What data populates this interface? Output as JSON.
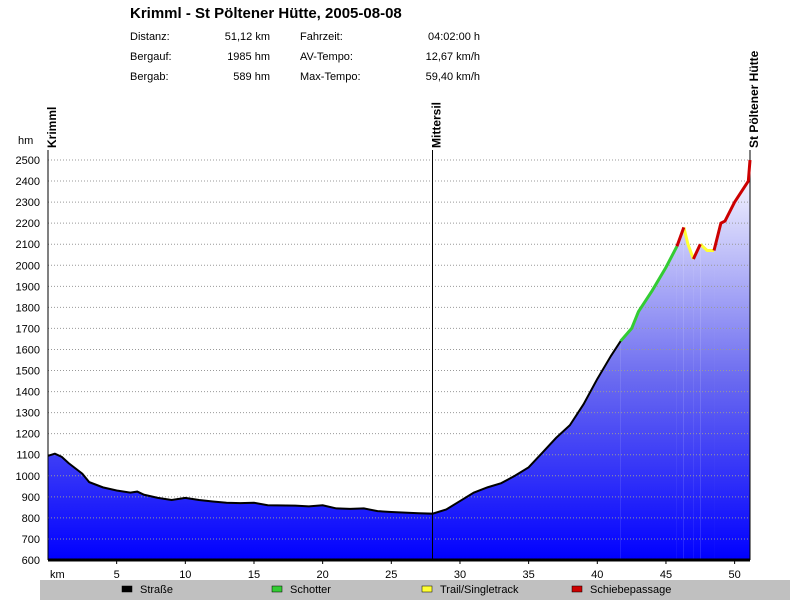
{
  "chart_data": {
    "type": "area",
    "title": "Krimml - St Pöltener Hütte, 2005-08-08",
    "stats": [
      {
        "label": "Distanz:",
        "value": "51,12 km"
      },
      {
        "label": "Bergauf:",
        "value": "1985 hm"
      },
      {
        "label": "Bergab:",
        "value": "589 hm"
      },
      {
        "label": "Fahrzeit:",
        "value": "04:02:00 h"
      },
      {
        "label": "AV-Tempo:",
        "value": "12,67 km/h"
      },
      {
        "label": "Max-Tempo:",
        "value": "59,40 km/h"
      }
    ],
    "y_label": "hm",
    "x_label": "km",
    "waypoints": [
      {
        "name": "Krimml",
        "x": 0
      },
      {
        "name": "Mittersil",
        "x": 28
      },
      {
        "name": "St Pöltener Hütte",
        "x": 51.12
      }
    ],
    "xlim": [
      0,
      51.12
    ],
    "ylim": [
      600,
      2500
    ],
    "xticks": [
      5,
      10,
      15,
      20,
      25,
      30,
      35,
      40,
      45,
      50
    ],
    "yticks": [
      600,
      700,
      800,
      900,
      1000,
      1100,
      1200,
      1300,
      1400,
      1500,
      1600,
      1700,
      1800,
      1900,
      2000,
      2100,
      2200,
      2300,
      2400,
      2500
    ],
    "grid": true,
    "series": [
      {
        "name": "Straße",
        "color": "#000000",
        "x": [
          0,
          0.5,
          1,
          1.5,
          2.5,
          3,
          4,
          5,
          6,
          6.5,
          7,
          8,
          9,
          10,
          11,
          12,
          13,
          14,
          15,
          16,
          18,
          19,
          20,
          21,
          22,
          23,
          24,
          25,
          26,
          27,
          28,
          29,
          30,
          31,
          32,
          33,
          34,
          35,
          36,
          37,
          38,
          39,
          40,
          41,
          41.7
        ],
        "values": [
          1095,
          1105,
          1090,
          1060,
          1010,
          970,
          945,
          930,
          920,
          925,
          910,
          895,
          885,
          895,
          885,
          878,
          872,
          870,
          872,
          860,
          858,
          855,
          860,
          845,
          843,
          845,
          832,
          828,
          825,
          822,
          820,
          840,
          880,
          920,
          945,
          965,
          1000,
          1040,
          1110,
          1180,
          1240,
          1340,
          1460,
          1570,
          1640
        ]
      },
      {
        "name": "Schotter",
        "color": "#33cc33",
        "x": [
          41.7,
          42.5,
          43,
          44,
          45,
          45.8
        ],
        "values": [
          1640,
          1700,
          1780,
          1880,
          1990,
          2090
        ]
      },
      {
        "name": "Trail/Singletrack",
        "color": "#ffff33",
        "x": [
          46.3,
          46.6,
          47,
          47.2,
          47.5,
          48,
          48.5
        ],
        "values": [
          2180,
          2100,
          2030,
          null,
          2100,
          2070,
          2070
        ]
      },
      {
        "name": "Schiebepassage",
        "color": "#cc0000",
        "x": [
          45.8,
          46.3,
          46.6,
          47,
          47.5,
          48,
          48.5,
          49,
          49.3,
          50,
          50.5,
          51,
          51.12
        ],
        "values": [
          2090,
          2180,
          null,
          2030,
          2100,
          null,
          2070,
          2200,
          2210,
          2300,
          2350,
          2400,
          2500
        ]
      }
    ]
  }
}
